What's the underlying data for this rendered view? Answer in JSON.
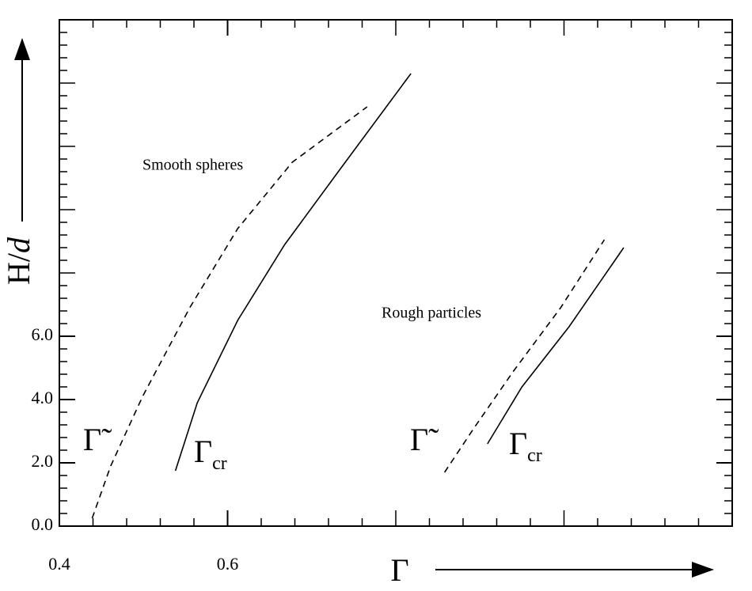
{
  "chart_data": {
    "type": "line",
    "x_label": "Γ",
    "y_label": "H/d",
    "annotations": [
      "Smooth spheres",
      "Rough particles"
    ],
    "xlim": [
      0.4,
      1.2
    ],
    "xticks": [
      0.4,
      0.6
    ],
    "ylim": [
      0,
      16
    ],
    "yticks": [
      {
        "value": 0,
        "label": "0.0"
      },
      {
        "value": 2,
        "label": "2.0"
      },
      {
        "value": 4,
        "label": "4.0"
      },
      {
        "value": 6,
        "label": "6.0"
      }
    ],
    "series": [
      {
        "name": "Γ̃",
        "color": "#000000",
        "dash": true,
        "x": [
          0.439,
          0.461,
          0.499,
          0.555,
          0.612,
          0.677,
          0.766
        ],
        "values": [
          0.25,
          1.9,
          4.1,
          6.9,
          9.4,
          11.5,
          13.25
        ]
      },
      {
        "name": "Γcr",
        "color": "#000000",
        "dash": false,
        "x": [
          0.538,
          0.564,
          0.612,
          0.668,
          0.733,
          0.818
        ],
        "values": [
          1.75,
          3.9,
          6.5,
          8.9,
          11.25,
          14.3
        ]
      },
      {
        "name": "Γ̃",
        "color": "#000000",
        "dash": true,
        "x": [
          0.858,
          0.893,
          0.94,
          0.996,
          1.048
        ],
        "values": [
          1.7,
          3.1,
          4.9,
          6.9,
          9.05
        ]
      },
      {
        "name": "Γcr",
        "color": "#000000",
        "dash": false,
        "x": [
          0.909,
          0.95,
          1.006,
          1.071
        ],
        "values": [
          2.6,
          4.4,
          6.3,
          8.8
        ]
      }
    ]
  }
}
